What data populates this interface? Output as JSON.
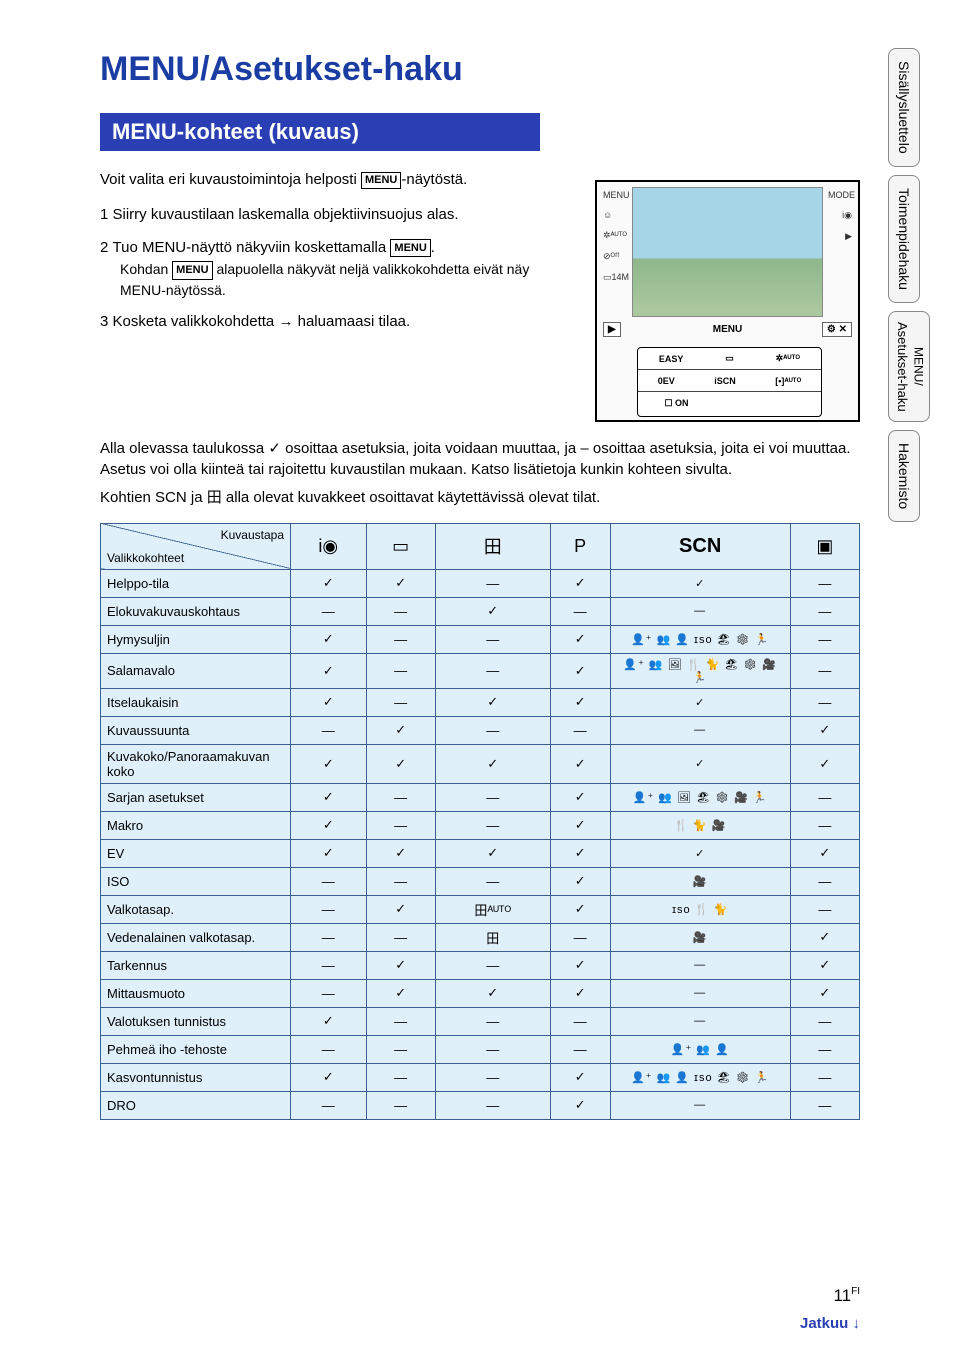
{
  "title": "MENU/Asetukset-haku",
  "section_heading": "MENU-kohteet (kuvaus)",
  "intro": "Voit valita eri kuvaustoimintoja helposti ",
  "intro_tail": "-näytöstä.",
  "menu_chip": "MENU",
  "steps": [
    {
      "num": "1",
      "text": "Siirry kuvaustilaan laskemalla objektiivinsuojus alas."
    },
    {
      "num": "2",
      "text": "Tuo MENU-näyttö näkyviin koskettamalla ",
      "chip": "MENU",
      "tail": ".",
      "sub": "Kohdan ",
      "sub_chip": "MENU",
      "sub_tail": " alapuolella näkyvät neljä valikkokohdetta eivät näy MENU-näytössä."
    },
    {
      "num": "3",
      "text": "Kosketa valikkokohdetta → haluamaasi tilaa."
    }
  ],
  "body_para": "Alla olevassa taulukossa ✓ osoittaa asetuksia, joita voidaan muuttaa, ja – osoittaa asetuksia, joita ei voi muuttaa. Asetus voi olla kiinteä tai rajoitettu kuvaustilan mukaan. Katso lisätietoja kunkin kohteen sivulta.",
  "body_para2": "Kohtien SCN ja ⽥ alla olevat kuvakkeet osoittavat käytettävissä olevat tilat.",
  "screenshot": {
    "menubar": {
      "left": "▶",
      "center": "MENU",
      "right": "✕"
    },
    "panel": [
      [
        "EASY",
        "▭",
        "✲ᴬᵁᵀᴼ"
      ],
      [
        "0EV",
        "iSCN",
        "[•]ᴬᵁᵀᴼ"
      ],
      [
        "☐ ON",
        "",
        ""
      ]
    ]
  },
  "side_tabs": [
    "Sisällysluettelo",
    "Toimenpidehaku",
    {
      "l1": "MENU/",
      "l2": "Asetukset-haku"
    },
    "Hakemisto"
  ],
  "table": {
    "diag_top": "Kuvaustapa",
    "diag_bot": "Valikkokohteet",
    "headers": [
      "i◉",
      "▭",
      "⽥",
      "P",
      "SCN",
      "▣"
    ],
    "scn_label": "SCN",
    "rows": [
      {
        "label": "Helppo-tila",
        "cells": [
          "✓",
          "✓",
          "—",
          "✓",
          "✓",
          "—"
        ]
      },
      {
        "label": "Elokuvakuvauskohtaus",
        "cells": [
          "—",
          "—",
          "✓",
          "—",
          "—",
          "—"
        ]
      },
      {
        "label": "Hymysuljin",
        "cells": [
          "✓",
          "—",
          "—",
          "✓",
          "👤⁺ 👥 👤 ɪsᴏ 🏖 ❄ 🏃",
          "—"
        ]
      },
      {
        "label": "Salamavalo",
        "cells": [
          "✓",
          "—",
          "—",
          "✓",
          "👤⁺ 👥 🖼 🍴 🐈 🏖 ❄ 🎥 🏃",
          "—"
        ]
      },
      {
        "label": "Itselaukaisin",
        "cells": [
          "✓",
          "—",
          "✓",
          "✓",
          "✓",
          "—"
        ]
      },
      {
        "label": "Kuvaussuunta",
        "cells": [
          "—",
          "✓",
          "—",
          "—",
          "—",
          "✓"
        ]
      },
      {
        "label": "Kuvakoko/Panoraamakuvan koko",
        "cells": [
          "✓",
          "✓",
          "✓",
          "✓",
          "✓",
          "✓"
        ]
      },
      {
        "label": "Sarjan asetukset",
        "cells": [
          "✓",
          "—",
          "—",
          "✓",
          "👤⁺ 👥 🖼 🏖 ❄ 🎥 🏃",
          "—"
        ]
      },
      {
        "label": "Makro",
        "cells": [
          "✓",
          "—",
          "—",
          "✓",
          "🍴 🐈 🎥",
          "—"
        ]
      },
      {
        "label": "EV",
        "cells": [
          "✓",
          "✓",
          "✓",
          "✓",
          "✓",
          "✓"
        ]
      },
      {
        "label": "ISO",
        "cells": [
          "—",
          "—",
          "—",
          "✓",
          "🎥",
          "—"
        ]
      },
      {
        "label": "Valkotasap.",
        "cells": [
          "—",
          "✓",
          "⽥ᴬᵁᵀᴼ",
          "✓",
          "ɪsᴏ 🍴 🐈",
          "—"
        ]
      },
      {
        "label": "Vedenalainen valkotasap.",
        "cells": [
          "—",
          "—",
          "⽥",
          "—",
          "🎥",
          "✓"
        ]
      },
      {
        "label": "Tarkennus",
        "cells": [
          "—",
          "✓",
          "—",
          "✓",
          "—",
          "✓"
        ]
      },
      {
        "label": "Mittausmuoto",
        "cells": [
          "—",
          "✓",
          "✓",
          "✓",
          "—",
          "✓"
        ]
      },
      {
        "label": "Valotuksen tunnistus",
        "cells": [
          "✓",
          "—",
          "—",
          "—",
          "—",
          "—"
        ]
      },
      {
        "label": "Pehmeä iho -tehoste",
        "cells": [
          "—",
          "—",
          "—",
          "—",
          "👤⁺ 👥 👤",
          "—"
        ]
      },
      {
        "label": "Kasvontunnistus",
        "cells": [
          "✓",
          "—",
          "—",
          "✓",
          "👤⁺ 👥 👤 ɪsᴏ 🏖 ❄ 🏃",
          "—"
        ]
      },
      {
        "label": "DRO",
        "cells": [
          "—",
          "—",
          "—",
          "✓",
          "—",
          "—"
        ]
      }
    ]
  },
  "page_number": "11",
  "page_suffix": "FI",
  "continue_text": "Jatkuu ↓"
}
